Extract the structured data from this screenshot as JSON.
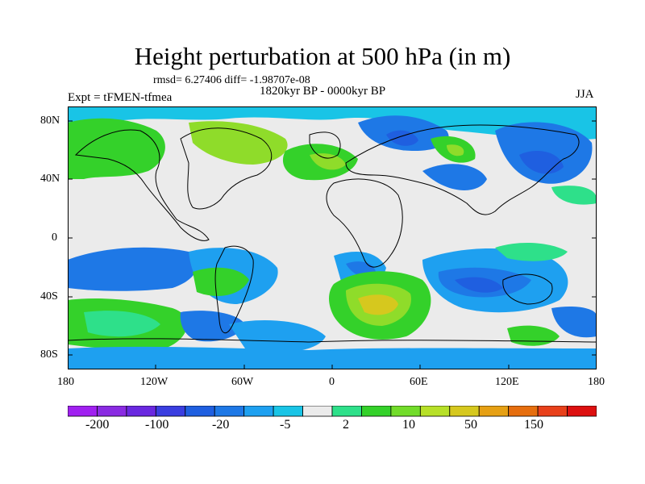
{
  "title": "Height perturbation at 500 hPa (in m)",
  "stats": "rmsd= 6.27406 diff= -1.98707e-08",
  "period": "1820kyr BP - 0000kyr BP",
  "experiment": "Expt = tFMEN-tfmea",
  "season": "JJA",
  "lat_labels": [
    "80N",
    "40N",
    "0",
    "40S",
    "80S"
  ],
  "lon_labels": [
    "180",
    "120W",
    "60W",
    "0",
    "60E",
    "120E",
    "180"
  ],
  "colorbar": {
    "levels": [
      "-200",
      "-100",
      "-20",
      "-5",
      "2",
      "10",
      "50",
      "150"
    ],
    "colors": [
      "#a020f0",
      "#8a2be2",
      "#6a28e0",
      "#3a3ee0",
      "#1f5fe0",
      "#1e78e6",
      "#1ea0f0",
      "#19c4e6",
      "#ebebeb",
      "#2ee08a",
      "#34d12a",
      "#72dc2a",
      "#b7e028",
      "#d6c81e",
      "#e6a014",
      "#e66e0e",
      "#e8401a",
      "#dd1010"
    ]
  },
  "field_colors": {
    "neutral": "#ebebeb",
    "ocean_dark": "#1f5fe0",
    "ocean_mid": "#1e78e6",
    "ocean_light": "#1ea0f0",
    "cyan": "#19c4e6",
    "teal": "#2ee08a",
    "green": "#34d12a",
    "lime": "#8fdc2a",
    "yellow": "#d6c81e"
  }
}
